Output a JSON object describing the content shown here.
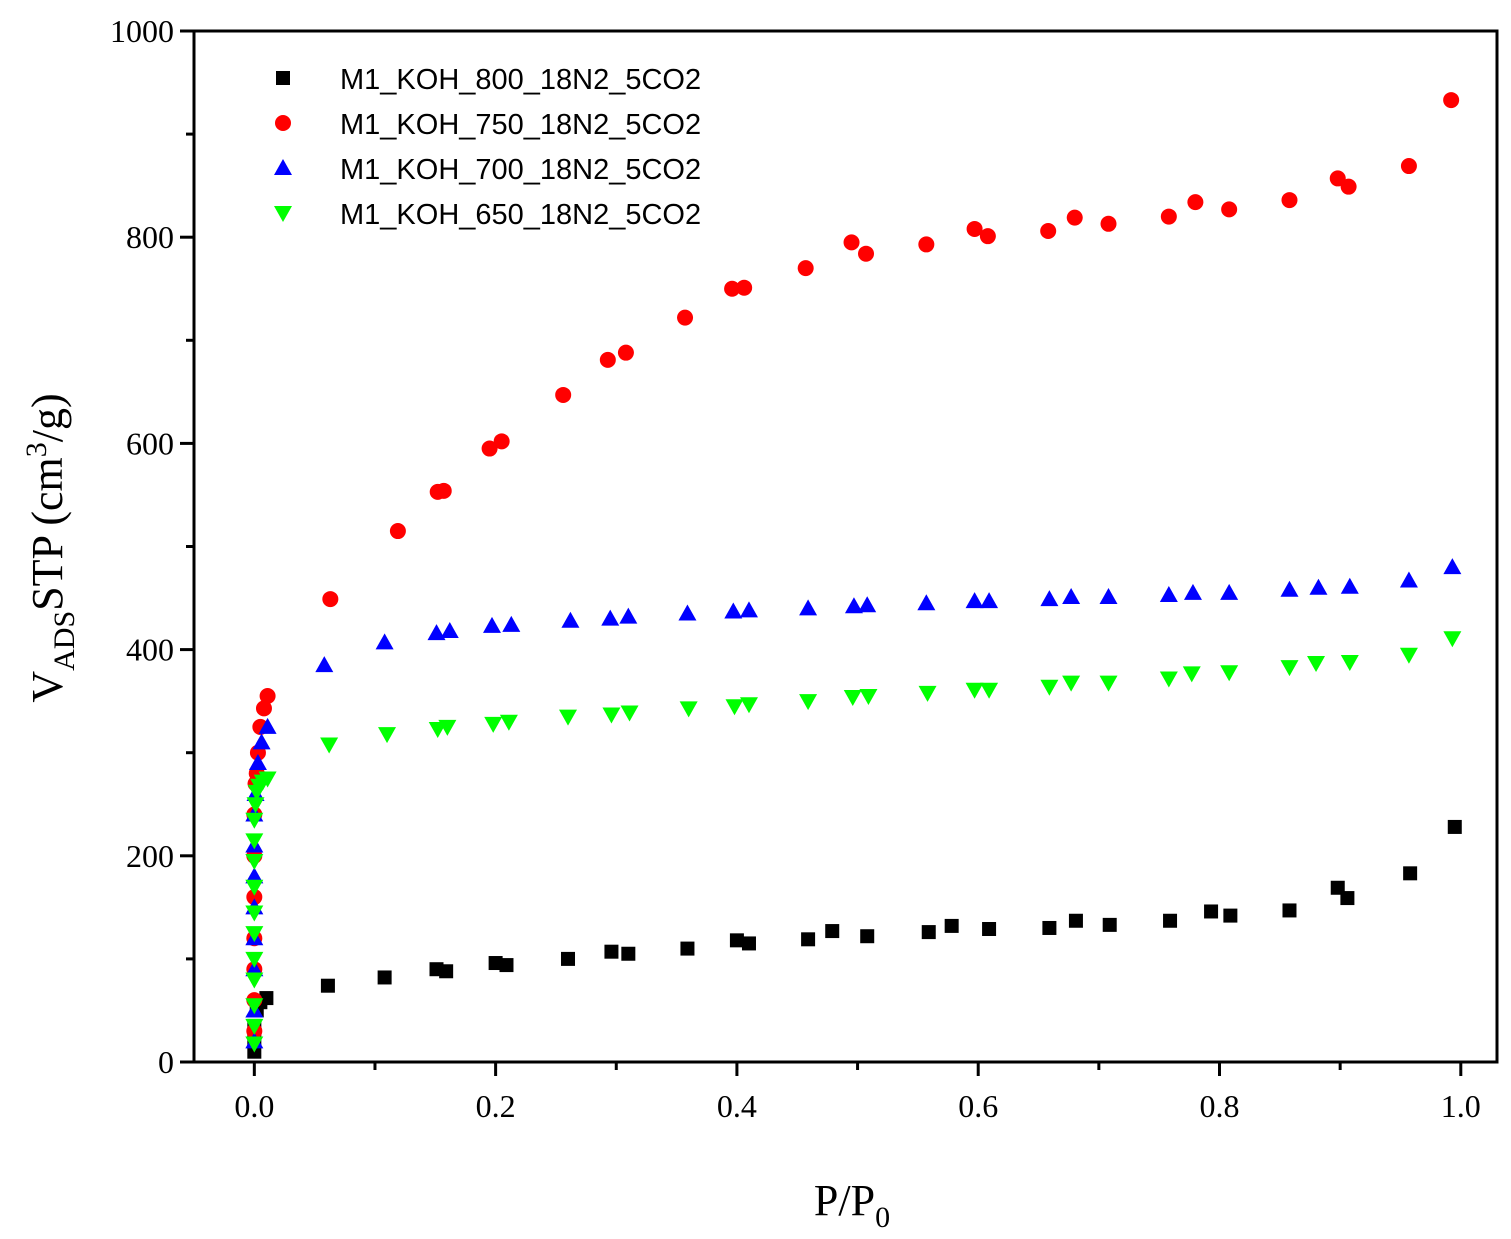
{
  "chart_data": {
    "type": "scatter",
    "title": "",
    "xlabel": {
      "main": "P/P",
      "sub": "0"
    },
    "ylabel": {
      "main": "V",
      "sub": "ADS",
      "mid": "STP (cm",
      "sup": "3",
      "end": "/g)"
    },
    "xlim": [
      -0.05,
      1.03
    ],
    "ylim": [
      0,
      1000
    ],
    "x_ticks": [
      0.0,
      0.2,
      0.4,
      0.6,
      0.8,
      1.0
    ],
    "x_tick_labels": [
      "0.0",
      "0.2",
      "0.4",
      "0.6",
      "0.8",
      "1.0"
    ],
    "y_ticks": [
      0,
      200,
      400,
      600,
      800,
      1000
    ],
    "y_tick_labels": [
      "0",
      "200",
      "400",
      "600",
      "800",
      "1000"
    ],
    "legend_position": "top-left",
    "series": [
      {
        "name": "M1_KOH_800_18N2_5CO2",
        "marker": "square",
        "color": "#000000",
        "x": [
          0.0,
          0.0,
          0.0,
          0.002,
          0.005,
          0.01,
          0.061,
          0.108,
          0.151,
          0.159,
          0.2,
          0.209,
          0.26,
          0.296,
          0.31,
          0.359,
          0.4,
          0.41,
          0.459,
          0.479,
          0.508,
          0.559,
          0.578,
          0.609,
          0.659,
          0.681,
          0.709,
          0.759,
          0.793,
          0.809,
          0.858,
          0.898,
          0.906,
          0.958,
          0.995
        ],
        "y": [
          10,
          20,
          35,
          50,
          58,
          62,
          74,
          82,
          90,
          88,
          96,
          94,
          100,
          107,
          105,
          110,
          118,
          115,
          119,
          127,
          122,
          126,
          132,
          129,
          130,
          137,
          133,
          137,
          146,
          142,
          147,
          169,
          159,
          183,
          228
        ]
      },
      {
        "name": "M1_KOH_750_18N2_5CO2",
        "marker": "circle",
        "color": "#ff0000",
        "x": [
          0.0,
          0.0,
          0.0,
          0.0,
          0.0,
          0.0,
          0.0,
          0.001,
          0.002,
          0.003,
          0.005,
          0.008,
          0.011,
          0.063,
          0.119,
          0.152,
          0.157,
          0.195,
          0.205,
          0.256,
          0.293,
          0.308,
          0.357,
          0.396,
          0.406,
          0.457,
          0.495,
          0.507,
          0.557,
          0.597,
          0.608,
          0.658,
          0.68,
          0.708,
          0.758,
          0.78,
          0.808,
          0.858,
          0.898,
          0.907,
          0.957,
          0.992
        ],
        "y": [
          30,
          60,
          90,
          120,
          160,
          200,
          240,
          270,
          280,
          300,
          325,
          343,
          355,
          449,
          515,
          553,
          554,
          595,
          602,
          647,
          681,
          688,
          722,
          750,
          751,
          770,
          795,
          784,
          793,
          808,
          801,
          806,
          819,
          813,
          820,
          834,
          827,
          836,
          857,
          849,
          869,
          933
        ]
      },
      {
        "name": "M1_KOH_700_18N2_5CO2",
        "marker": "triangle-up",
        "color": "#0000ff",
        "x": [
          0.0,
          0.0,
          0.0,
          0.0,
          0.0,
          0.0,
          0.0,
          0.0,
          0.001,
          0.003,
          0.006,
          0.011,
          0.058,
          0.108,
          0.151,
          0.162,
          0.197,
          0.213,
          0.262,
          0.295,
          0.31,
          0.359,
          0.397,
          0.41,
          0.459,
          0.497,
          0.508,
          0.557,
          0.597,
          0.609,
          0.659,
          0.677,
          0.708,
          0.758,
          0.778,
          0.808,
          0.858,
          0.882,
          0.908,
          0.957,
          0.993
        ],
        "y": [
          20,
          50,
          90,
          120,
          150,
          180,
          210,
          240,
          260,
          290,
          310,
          325,
          385,
          407,
          416,
          418,
          423,
          424,
          428,
          430,
          432,
          435,
          437,
          438,
          440,
          442,
          443,
          445,
          447,
          447,
          449,
          451,
          451,
          453,
          455,
          455,
          458,
          460,
          461,
          467,
          480
        ]
      },
      {
        "name": "M1_KOH_650_18N2_5CO2",
        "marker": "triangle-down",
        "color": "#00ff00",
        "x": [
          0.0,
          0.0,
          0.0,
          0.0,
          0.0,
          0.0,
          0.0,
          0.0,
          0.0,
          0.0,
          0.0,
          0.001,
          0.002,
          0.004,
          0.007,
          0.011,
          0.062,
          0.11,
          0.152,
          0.16,
          0.198,
          0.211,
          0.26,
          0.296,
          0.311,
          0.36,
          0.398,
          0.41,
          0.459,
          0.496,
          0.509,
          0.558,
          0.597,
          0.609,
          0.659,
          0.677,
          0.708,
          0.758,
          0.777,
          0.808,
          0.858,
          0.88,
          0.908,
          0.957,
          0.993
        ],
        "y": [
          18,
          35,
          55,
          80,
          100,
          125,
          145,
          170,
          195,
          215,
          235,
          250,
          262,
          268,
          272,
          275,
          308,
          318,
          323,
          325,
          328,
          330,
          335,
          337,
          339,
          343,
          345,
          347,
          350,
          354,
          355,
          358,
          361,
          361,
          364,
          368,
          368,
          372,
          377,
          378,
          383,
          387,
          388,
          395,
          411
        ]
      }
    ]
  }
}
